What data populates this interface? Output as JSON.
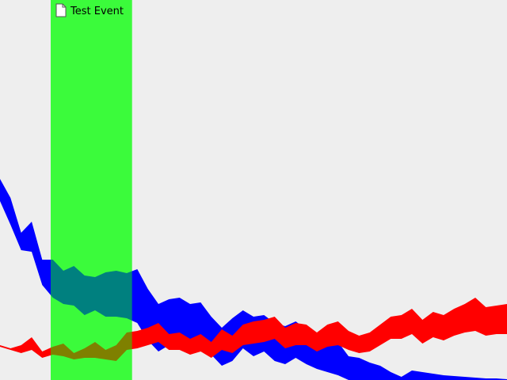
{
  "chart_data": {
    "type": "area",
    "title": "",
    "xlabel": "",
    "ylabel": "",
    "x": [
      1,
      2,
      3,
      4,
      5,
      6,
      7,
      8,
      9,
      10,
      11,
      12,
      13,
      14,
      15,
      16,
      17,
      18,
      19,
      20,
      21,
      22,
      23,
      24,
      25,
      26,
      27,
      28,
      29,
      30,
      31,
      32,
      33,
      34,
      35,
      36,
      37,
      38,
      39,
      40,
      41,
      42,
      43,
      44,
      45,
      46,
      47,
      48,
      49
    ],
    "xlim": [
      1,
      49
    ],
    "ylim": [
      0,
      480
    ],
    "grid": false,
    "legend": "none",
    "event": {
      "label": "Test Event",
      "x_start": 5.8,
      "x_end": 13.5,
      "color": "#00ff00",
      "opacity": 0.5,
      "icon": "document-icon"
    },
    "series": [
      {
        "color": "#0000ff",
        "upper": [
          254,
          230,
          186,
          200,
          152,
          152,
          138,
          144,
          132,
          130,
          136,
          138,
          135,
          140,
          115,
          96,
          102,
          104,
          96,
          98,
          80,
          66,
          78,
          88,
          80,
          82,
          72,
          68,
          74,
          64,
          58,
          52,
          48,
          30,
          28,
          22,
          18,
          10,
          4,
          12,
          10,
          8,
          6,
          5,
          4,
          3,
          2,
          2,
          1
        ],
        "lower": [
          226,
          196,
          164,
          162,
          120,
          104,
          96,
          94,
          82,
          88,
          80,
          80,
          78,
          72,
          50,
          36,
          44,
          48,
          46,
          50,
          32,
          18,
          24,
          40,
          30,
          36,
          24,
          20,
          28,
          20,
          14,
          10,
          6,
          0,
          0,
          0,
          0,
          0,
          0,
          0,
          0,
          0,
          0,
          0,
          0,
          0,
          0,
          0,
          0
        ]
      },
      {
        "color": "#ff0000",
        "upper": [
          44,
          40,
          44,
          54,
          36,
          42,
          46,
          34,
          40,
          48,
          38,
          44,
          60,
          62,
          66,
          72,
          58,
          60,
          52,
          58,
          48,
          64,
          56,
          70,
          74,
          76,
          80,
          66,
          72,
          70,
          60,
          70,
          74,
          62,
          56,
          60,
          70,
          80,
          82,
          90,
          76,
          86,
          82,
          90,
          96,
          104,
          92,
          94,
          96
        ],
        "lower": [
          42,
          38,
          34,
          38,
          28,
          32,
          30,
          26,
          28,
          28,
          26,
          24,
          38,
          40,
          44,
          48,
          38,
          38,
          32,
          36,
          28,
          38,
          34,
          44,
          46,
          48,
          52,
          40,
          44,
          44,
          36,
          42,
          44,
          38,
          34,
          36,
          44,
          52,
          52,
          58,
          46,
          54,
          50,
          56,
          60,
          62,
          56,
          58,
          58
        ]
      }
    ]
  }
}
